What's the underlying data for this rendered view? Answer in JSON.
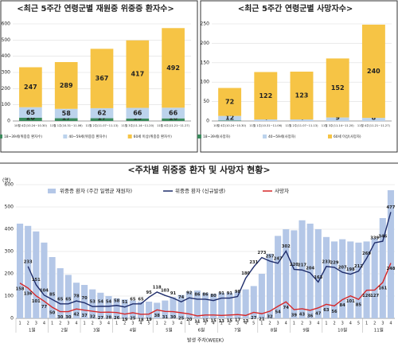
{
  "chart_data": [
    {
      "type": "stacked_bar",
      "title": "<최근 5주간 연령군별 재원중 위중증 환자수>",
      "categories": [
        "10월 4주(10.24~10.30)",
        "11월 1주(10.31~11.06)",
        "11월 2주(11.07~11.13)",
        "11월 3주(11.14~11.20)",
        "11월 4주(11.21~11.27)"
      ],
      "series": [
        {
          "name": "18~39세(위중증 환자수)",
          "color": "#3a8a5c",
          "values": [
            20,
            17,
            17,
            15,
            16
          ]
        },
        {
          "name": "40~59세(위중증 환자수)",
          "color": "#bcd3ec",
          "values": [
            65,
            58,
            62,
            66,
            66
          ]
        },
        {
          "name": "60세 이상(위중증 환자수)",
          "color": "#f6c445",
          "values": [
            247,
            289,
            367,
            417,
            492
          ]
        }
      ],
      "ylim": [
        0,
        600
      ],
      "yticks": [
        0,
        100,
        200,
        300,
        400,
        500,
        600
      ],
      "grid": true
    },
    {
      "type": "stacked_bar",
      "title": "<최근 5주간 연령군별 사망자수>",
      "categories": [
        "10월 4주(10.24~10.30)",
        "11월 1주(10.31~11.06)",
        "11월 2주(11.07~11.13)",
        "11월 3주(11.14~11.20)",
        "11월 4주(11.21~11.27)"
      ],
      "series": [
        {
          "name": "18~39세(사망자)",
          "color": "#3a8a5c",
          "values": [
            1,
            null,
            null,
            null,
            null
          ]
        },
        {
          "name": "40~59세(사망자)",
          "color": "#bcd3ec",
          "values": [
            12,
            4,
            4,
            9,
            8
          ]
        },
        {
          "name": "60세 이상(사망자)",
          "color": "#f6c445",
          "values": [
            72,
            122,
            123,
            152,
            240
          ]
        }
      ],
      "ylim": [
        0,
        250
      ],
      "yticks": [
        0,
        50,
        100,
        150,
        200,
        250
      ],
      "grid": true
    },
    {
      "type": "combo",
      "title": "<주차별 위중증 환자 및 사망자 현황>",
      "y_unit": "(명)",
      "xlabel": "발생 주차(WEEK)",
      "categories": [
        "1",
        "2",
        "3",
        "4",
        "1",
        "2",
        "3",
        "4",
        "1",
        "2",
        "3",
        "4",
        "1",
        "2",
        "3",
        "4",
        "5",
        "1",
        "2",
        "3",
        "4",
        "1",
        "2",
        "3",
        "4",
        "1",
        "2",
        "3",
        "4",
        "5",
        "1",
        "2",
        "3",
        "4",
        "1",
        "2",
        "3",
        "4",
        "1",
        "2",
        "3",
        "4",
        "5",
        "1",
        "2",
        "3",
        "4"
      ],
      "x_groups": [
        "1월",
        null,
        null,
        null,
        "2월",
        null,
        null,
        null,
        "3월",
        null,
        null,
        null,
        "4월",
        null,
        null,
        null,
        null,
        "5월",
        null,
        null,
        null,
        "6월",
        null,
        null,
        null,
        "7월",
        null,
        null,
        null,
        null,
        "8월",
        null,
        null,
        null,
        "9월",
        null,
        null,
        null,
        "10월",
        null,
        null,
        null,
        null,
        "11월",
        null,
        null,
        null
      ],
      "series": [
        {
          "name": "위중증 환자 (주간 일평균 재원자)",
          "kind": "bar",
          "color": "#b4c7e7",
          "values": [
            425,
            415,
            390,
            340,
            275,
            225,
            195,
            160,
            150,
            130,
            115,
            100,
            90,
            85,
            80,
            75,
            75,
            70,
            80,
            95,
            105,
            120,
            125,
            115,
            110,
            115,
            115,
            120,
            130,
            145,
            200,
            290,
            370,
            400,
            395,
            440,
            425,
            400,
            365,
            345,
            355,
            345,
            340,
            345,
            360,
            450,
            575
          ]
        },
        {
          "name": "위중증 환자 (신규발생)",
          "kind": "line",
          "color": "#1f2d6b",
          "values": [
            null,
            233,
            151,
            104,
            85,
            65,
            65,
            78,
            70,
            53,
            54,
            54,
            58,
            51,
            65,
            65,
            95,
            118,
            103,
            91,
            74,
            92,
            86,
            86,
            80,
            91,
            91,
            98,
            180,
            231,
            273,
            257,
            247,
            302,
            220,
            217,
            204,
            163,
            233,
            229,
            207,
            198,
            212,
            269,
            339,
            346,
            477
          ]
        },
        {
          "name": "사망자",
          "kind": "line",
          "color": "#d62728",
          "values": [
            158,
            136,
            101,
            77,
            50,
            30,
            30,
            42,
            37,
            32,
            27,
            28,
            26,
            19,
            25,
            18,
            19,
            38,
            31,
            30,
            25,
            20,
            11,
            15,
            15,
            13,
            15,
            17,
            13,
            27,
            21,
            32,
            54,
            74,
            39,
            43,
            36,
            47,
            63,
            56,
            84,
            101,
            85,
            126,
            127,
            161,
            248
          ]
        }
      ],
      "ylim": [
        0,
        600
      ],
      "yticks": [
        0,
        100,
        200,
        300,
        400,
        500,
        600
      ],
      "grid": true
    }
  ]
}
